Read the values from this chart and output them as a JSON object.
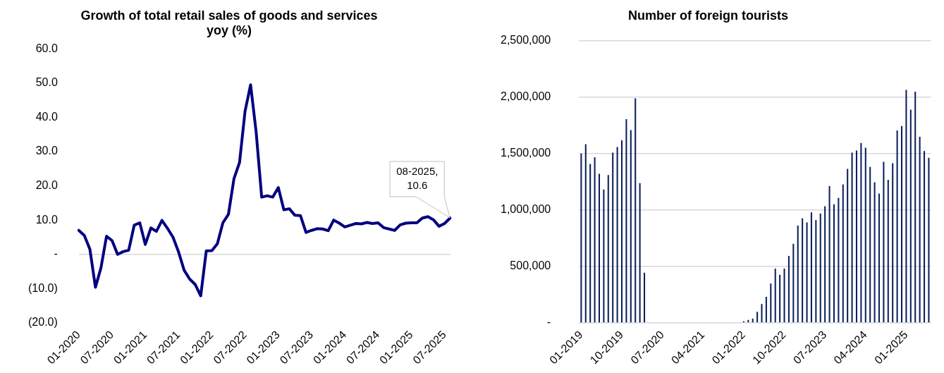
{
  "chart_data": [
    {
      "type": "line",
      "title": "Growth of total retail sales of goods and services yoy (%)",
      "categories": [
        "01-2020",
        null,
        null,
        null,
        null,
        null,
        "07-2020",
        null,
        null,
        null,
        null,
        null,
        "01-2021",
        null,
        null,
        null,
        null,
        null,
        "07-2021",
        null,
        null,
        null,
        null,
        null,
        "01-2022",
        null,
        null,
        null,
        null,
        null,
        "07-2022",
        null,
        null,
        null,
        null,
        null,
        "01-2023",
        null,
        null,
        null,
        null,
        null,
        "07-2023",
        null,
        null,
        null,
        null,
        null,
        "01-2024",
        null,
        null,
        null,
        null,
        null,
        "07-2024",
        null,
        null,
        null,
        null,
        null,
        "01-2025",
        null,
        null,
        null,
        null,
        null,
        "07-2025",
        null
      ],
      "series": [
        {
          "color": "#000080",
          "values": [
            7.0,
            5.5,
            1.5,
            -9.6,
            -3.9,
            5.3,
            4.0,
            0.0,
            0.8,
            1.2,
            8.5,
            9.2,
            2.9,
            7.7,
            6.7,
            9.9,
            7.6,
            5.0,
            0.7,
            -4.6,
            -7.2,
            -8.8,
            -12.1,
            1.0,
            1.1,
            3.1,
            9.2,
            11.7,
            22.1,
            26.8,
            41.8,
            49.5,
            35.7,
            16.7,
            17.1,
            16.7,
            19.5,
            13.0,
            13.3,
            11.4,
            11.3,
            6.4,
            7.0,
            7.5,
            7.4,
            6.9,
            10.0,
            9.1,
            8.0,
            8.5,
            9.0,
            8.9,
            9.3,
            9.0,
            9.2,
            7.8,
            7.4,
            7.0,
            8.6,
            9.1,
            9.2,
            9.2,
            10.6,
            11.0,
            10.1,
            8.2,
            9.0,
            10.6
          ],
          "value_labels": [
            null,
            null,
            null,
            null,
            null,
            null,
            null,
            null,
            null,
            null,
            null,
            null,
            null,
            null,
            null,
            null,
            null,
            null,
            null,
            null,
            null,
            null,
            null,
            null,
            null,
            null,
            null,
            null,
            null,
            null,
            null,
            null,
            null,
            null,
            null,
            null,
            null,
            null,
            null,
            null,
            null,
            null,
            null,
            null,
            null,
            null,
            null,
            null,
            null,
            null,
            null,
            null,
            null,
            null,
            null,
            null,
            null,
            null,
            null,
            null,
            null,
            null,
            null,
            null,
            null,
            null,
            null,
            "08-2025, 10.6"
          ]
        }
      ],
      "ylim": [
        -20,
        60
      ],
      "yticks": [
        {
          "value": -20,
          "label": "(20.0)"
        },
        {
          "value": -10,
          "label": "(10.0)"
        },
        {
          "value": 0,
          "label": "-"
        },
        {
          "value": 10,
          "label": "10.0"
        },
        {
          "value": 20,
          "label": "20.0"
        },
        {
          "value": 30,
          "label": "30.0"
        },
        {
          "value": 40,
          "label": "40.0"
        },
        {
          "value": 50,
          "label": "50.0"
        },
        {
          "value": 60,
          "label": "60.0"
        }
      ],
      "marker": "none",
      "line_style": "solid",
      "legend": false
    },
    {
      "type": "bar",
      "title": "Number of foreign tourists",
      "categories": [
        "01-2019",
        null,
        null,
        null,
        null,
        null,
        null,
        null,
        null,
        "10-2019",
        null,
        null,
        null,
        null,
        null,
        null,
        null,
        null,
        "07-2020",
        null,
        null,
        null,
        null,
        null,
        null,
        null,
        null,
        "04-2021",
        null,
        null,
        null,
        null,
        null,
        null,
        null,
        null,
        "01-2022",
        null,
        null,
        null,
        null,
        null,
        null,
        null,
        null,
        "10-2022",
        null,
        null,
        null,
        null,
        null,
        null,
        null,
        null,
        "07-2023",
        null,
        null,
        null,
        null,
        null,
        null,
        null,
        null,
        "04-2024",
        null,
        null,
        null,
        null,
        null,
        null,
        null,
        null,
        "01-2025",
        null,
        null,
        null,
        null,
        null
      ],
      "series": [
        {
          "color": "#0a1f5c",
          "values": [
            1500000,
            1583000,
            1407000,
            1467000,
            1321000,
            1181000,
            1310000,
            1507000,
            1557000,
            1617000,
            1805000,
            1707000,
            1988000,
            1238000,
            445000,
            0,
            0,
            0,
            0,
            0,
            0,
            0,
            0,
            0,
            0,
            0,
            0,
            0,
            0,
            0,
            0,
            0,
            0,
            0,
            0,
            0,
            14000,
            26000,
            38000,
            98000,
            167000,
            231000,
            348000,
            481000,
            426000,
            481000,
            593000,
            700000,
            862000,
            926000,
            890000,
            979000,
            910000,
            969000,
            1033000,
            1212000,
            1050000,
            1107000,
            1226000,
            1364000,
            1507000,
            1526000,
            1593000,
            1552000,
            1381000,
            1245000,
            1145000,
            1426000,
            1267000,
            1414000,
            1705000,
            1743000,
            2064000,
            1888000,
            2048000,
            1648000,
            1521000,
            1462000
          ]
        }
      ],
      "ylim": [
        0,
        2500000
      ],
      "yticks": [
        {
          "value": 0,
          "label": "-"
        },
        {
          "value": 500000,
          "label": "500,000"
        },
        {
          "value": 1000000,
          "label": "1,000,000"
        },
        {
          "value": 1500000,
          "label": "1,500,000"
        },
        {
          "value": 2000000,
          "label": "2,000,000"
        },
        {
          "value": 2500000,
          "label": "2,500,000"
        }
      ],
      "grid": "y",
      "legend": false
    }
  ]
}
